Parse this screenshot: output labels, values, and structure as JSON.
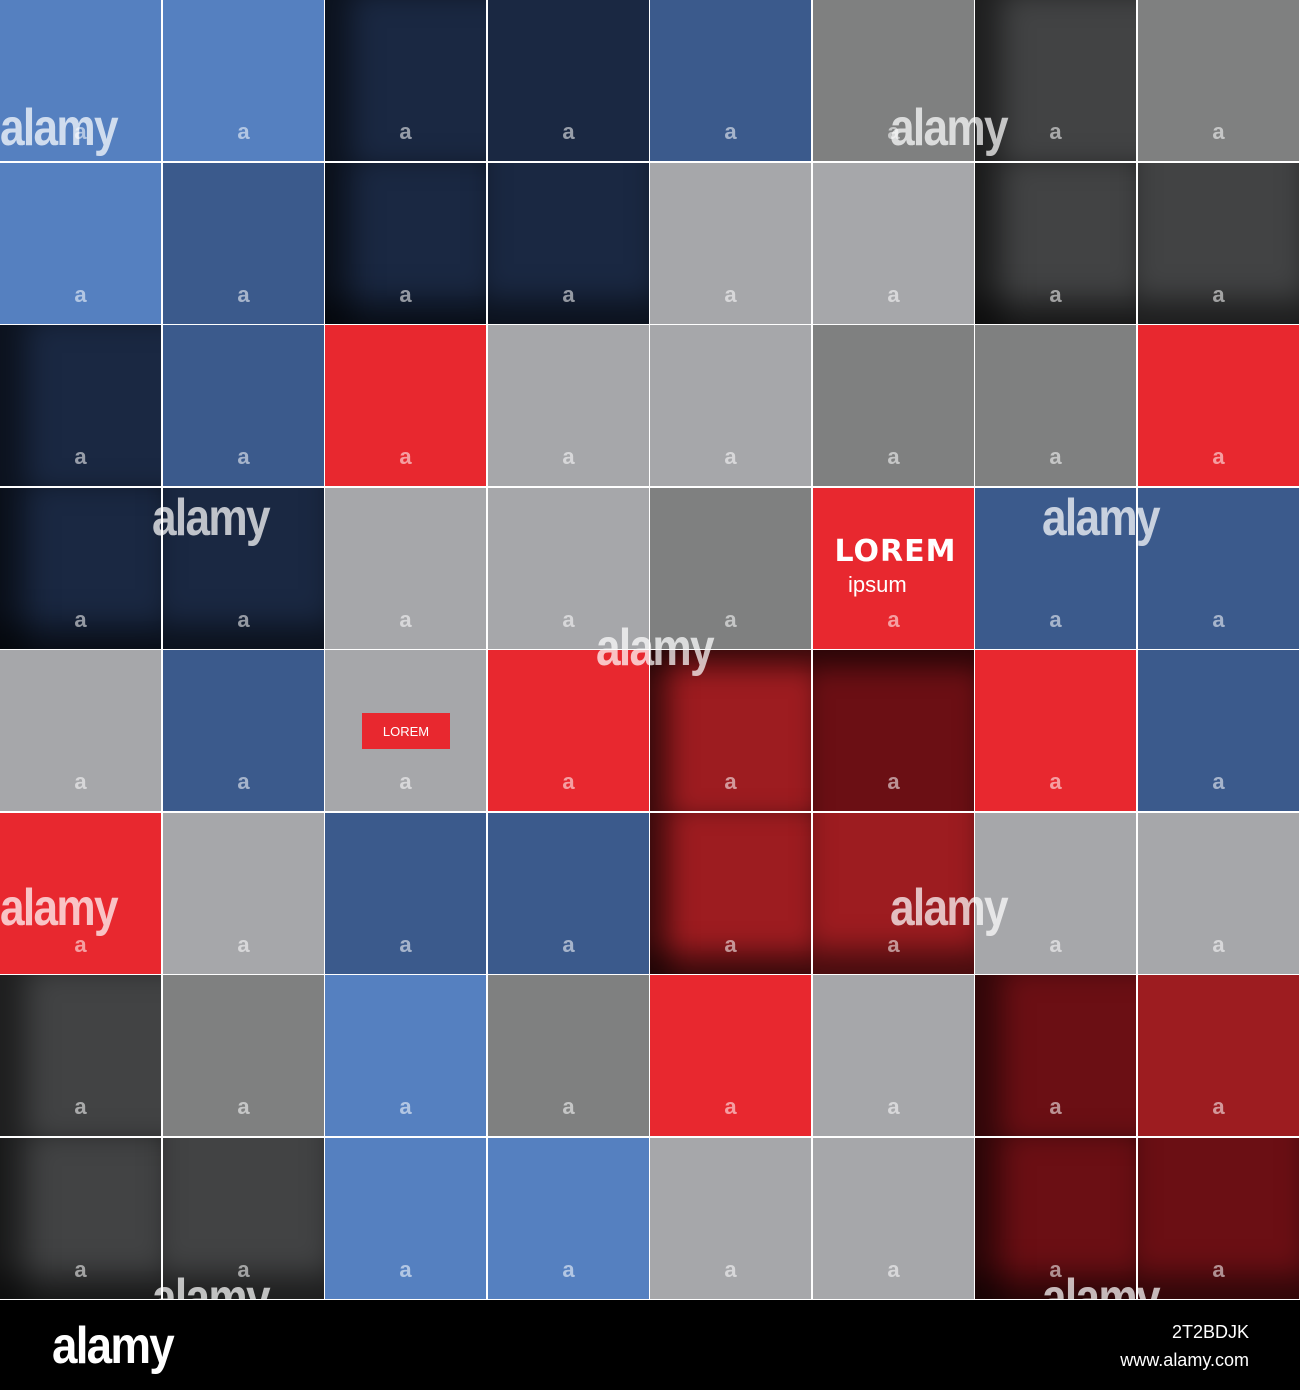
{
  "colors": {
    "light_blue": "#5580c0",
    "mid_blue": "#3b5a8c",
    "navy": "#1a2842",
    "gray_light": "#a6a7aa",
    "gray_mid": "#7f8080",
    "charcoal": "#424344",
    "red": "#e8282f",
    "dark_red": "#9d1c20",
    "maroon": "#6b0f14",
    "grout": "#ffffff"
  },
  "tiles": [
    [
      "light_blue",
      "light_blue",
      "navy",
      "navy",
      "mid_blue",
      "gray_mid",
      "charcoal",
      "gray_mid"
    ],
    [
      "light_blue",
      "mid_blue",
      "navy",
      "navy",
      "gray_light",
      "gray_light",
      "charcoal",
      "charcoal"
    ],
    [
      "navy",
      "mid_blue",
      "red",
      "gray_light",
      "gray_light",
      "gray_mid",
      "gray_mid",
      "red"
    ],
    [
      "navy",
      "navy",
      "gray_light",
      "gray_light",
      "gray_mid",
      "red",
      "mid_blue",
      "mid_blue"
    ],
    [
      "gray_light",
      "mid_blue",
      "gray_light",
      "red",
      "dark_red",
      "maroon",
      "red",
      "mid_blue"
    ],
    [
      "red",
      "gray_light",
      "mid_blue",
      "mid_blue",
      "dark_red",
      "dark_red",
      "gray_light",
      "gray_light"
    ],
    [
      "charcoal",
      "gray_mid",
      "light_blue",
      "gray_mid",
      "red",
      "gray_light",
      "maroon",
      "dark_red"
    ],
    [
      "charcoal",
      "charcoal",
      "light_blue",
      "light_blue",
      "gray_light",
      "gray_light",
      "maroon",
      "maroon"
    ]
  ],
  "shading": [
    [
      "",
      "",
      "left",
      "",
      "",
      "",
      "left",
      ""
    ],
    [
      "",
      "",
      "lb",
      "bottom",
      "",
      "",
      "lb",
      "bottom"
    ],
    [
      "left",
      "",
      "",
      "",
      "",
      "",
      "",
      ""
    ],
    [
      "lb",
      "bottom",
      "",
      "",
      "",
      "",
      "",
      ""
    ],
    [
      "",
      "",
      "",
      "",
      "tl",
      "top",
      "",
      ""
    ],
    [
      "",
      "",
      "",
      "",
      "tlb",
      "bottom",
      "",
      ""
    ],
    [
      "left",
      "",
      "",
      "",
      "",
      "",
      "left",
      ""
    ],
    [
      "lb",
      "bottom",
      "",
      "",
      "",
      "",
      "lb",
      "bottom"
    ]
  ],
  "hero": {
    "title": "LOREM",
    "subtitle": "ipsum"
  },
  "mini_label": "LOREM",
  "watermark": {
    "word": "alamy",
    "tile_mark": "a"
  },
  "footer": {
    "logo": "alamy",
    "image_id": "2T2BDJK",
    "url": "www.alamy.com"
  }
}
